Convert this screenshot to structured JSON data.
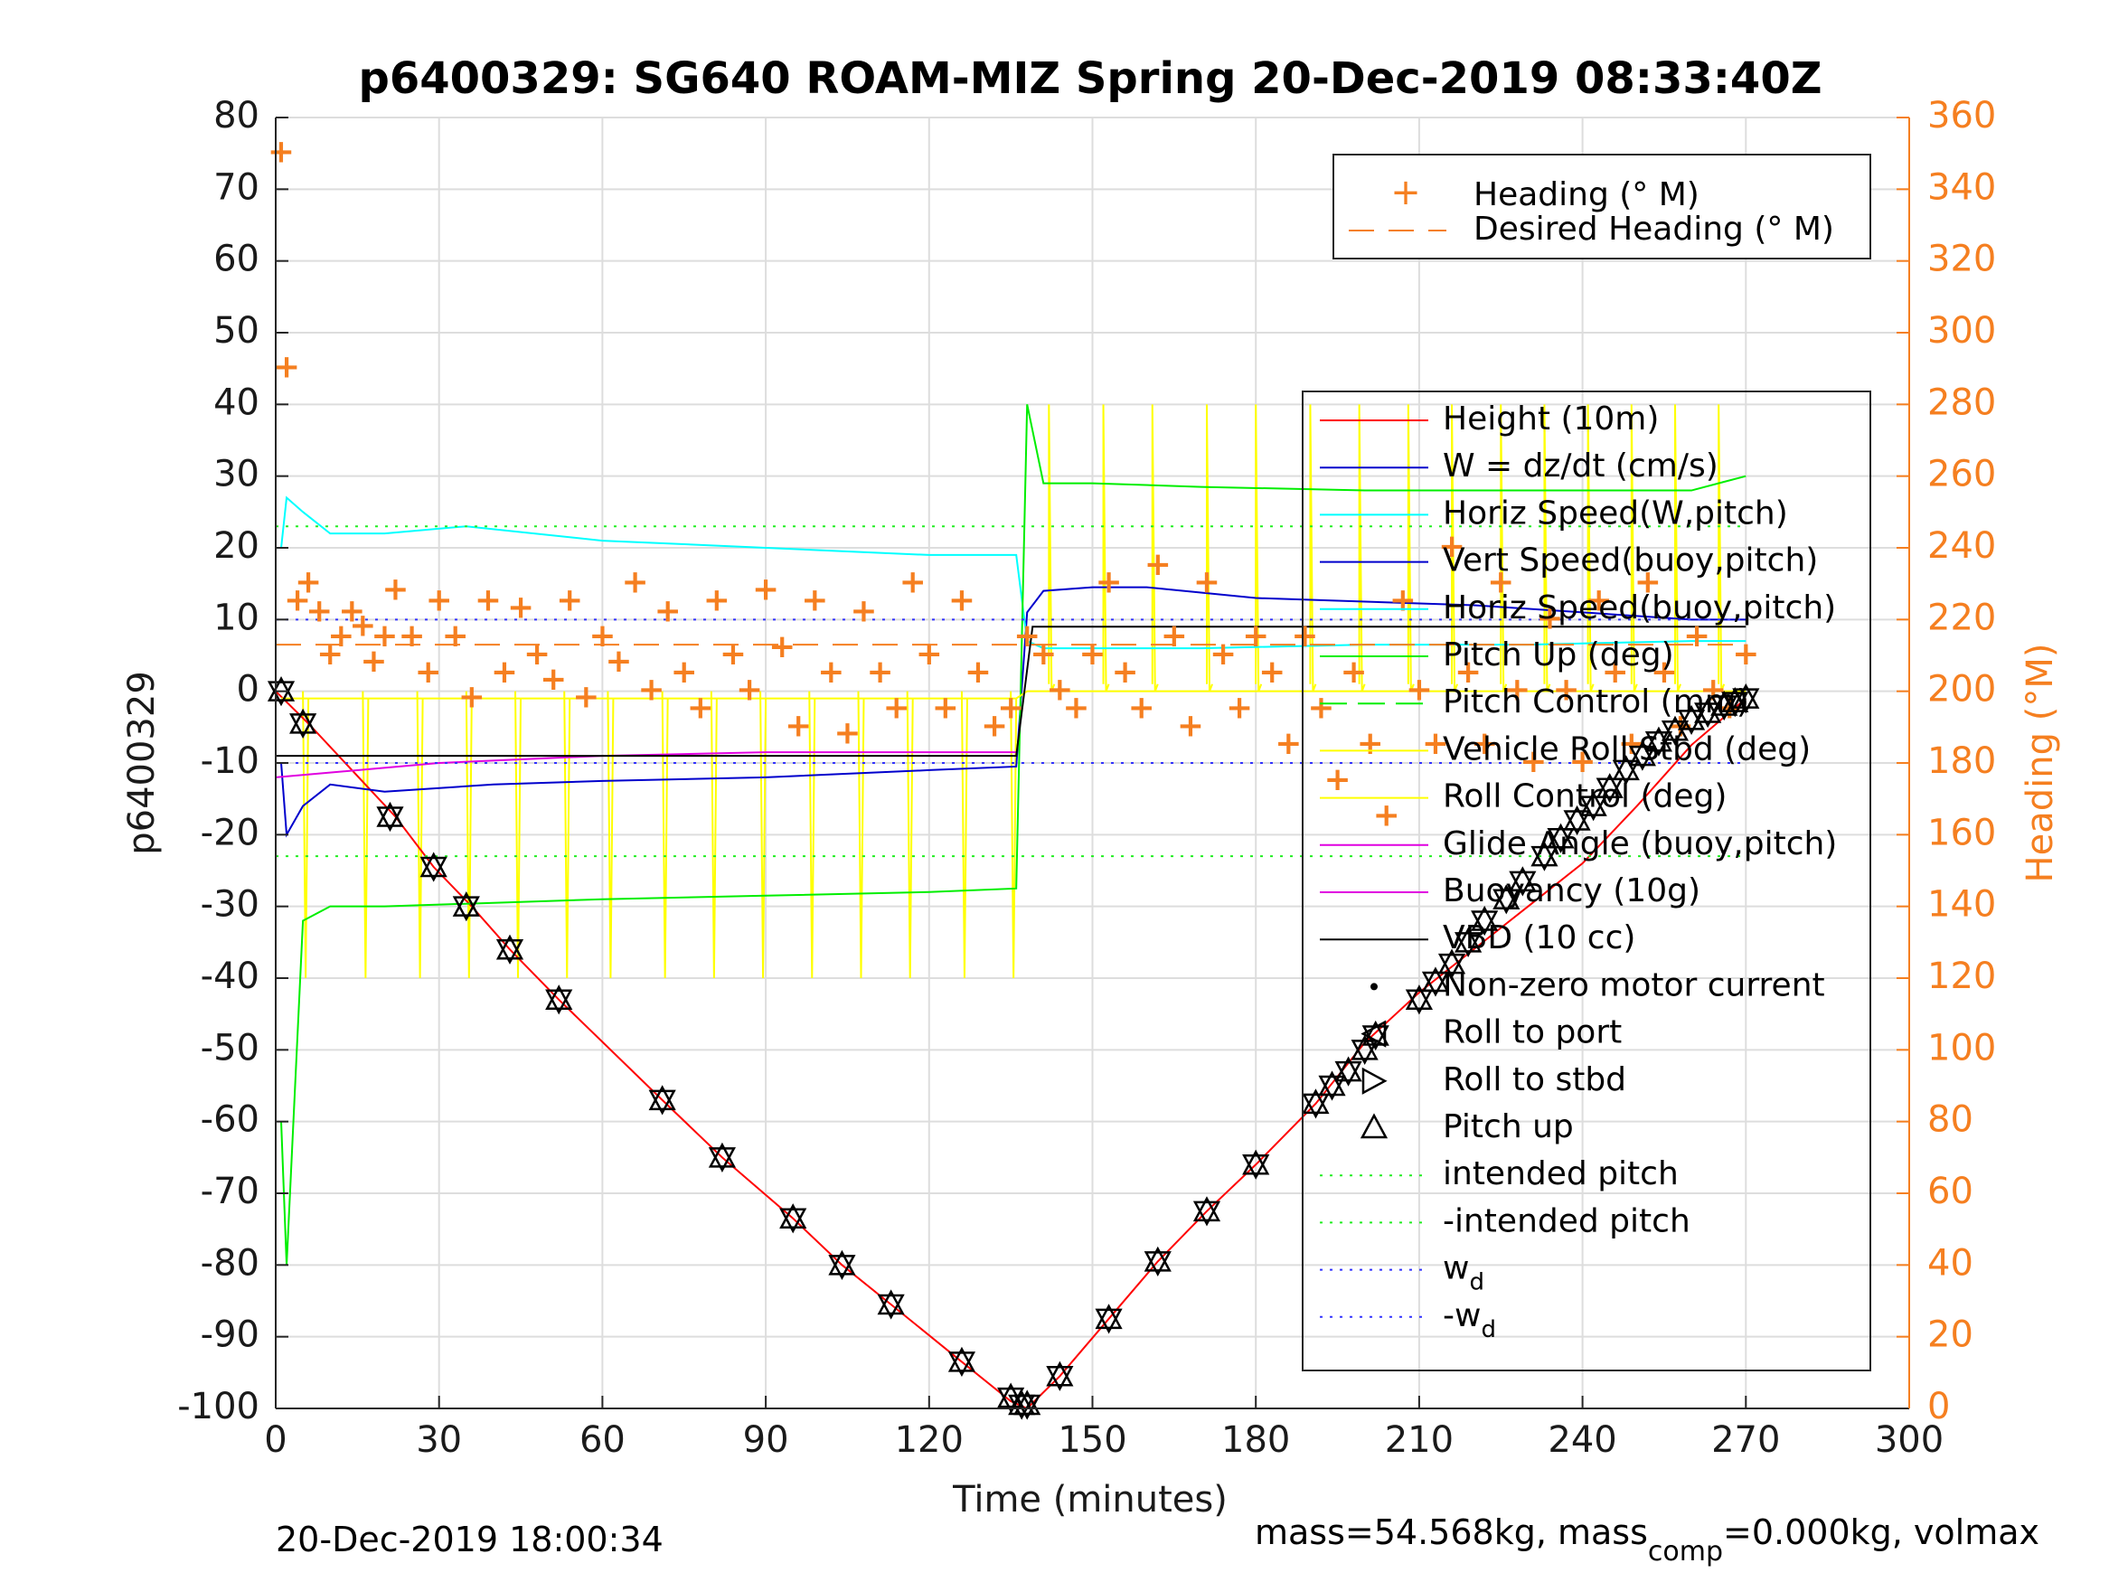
{
  "chart_data": {
    "type": "line",
    "title": "p6400329: SG640 ROAM-MIZ Spring 20-Dec-2019 08:33:40Z",
    "xlabel": "Time (minutes)",
    "ylabel": "p6400329",
    "y2label": "Heading (°M)",
    "xlim": [
      0,
      300
    ],
    "ylim": [
      -100,
      80
    ],
    "y2lim": [
      0,
      360
    ],
    "xticks": [
      "0",
      "30",
      "60",
      "90",
      "120",
      "150",
      "180",
      "210",
      "240",
      "270",
      "300"
    ],
    "yticks": [
      "80",
      "70",
      "60",
      "50",
      "40",
      "30",
      "20",
      "10",
      "0",
      "-10",
      "-20",
      "-30",
      "-40",
      "-50",
      "-60",
      "-70",
      "-80",
      "-90",
      "-100"
    ],
    "y2ticks": [
      "360",
      "340",
      "320",
      "300",
      "280",
      "260",
      "240",
      "220",
      "200",
      "180",
      "160",
      "140",
      "120",
      "100",
      "80",
      "60",
      "40",
      "20",
      "0"
    ],
    "grid": true,
    "colors": {
      "heading": "#f57f20",
      "height": "#ff0000",
      "w": "#0000cc",
      "horiz": "#00ffff",
      "pitch": "#00ee00",
      "roll": "#ffff00",
      "glide": "#e000e0",
      "vbd": "#000000",
      "wd": "#3333ff"
    },
    "legend_top": {
      "placement": "top-right",
      "entries": [
        "Heading (° M)",
        "Desired Heading (° M)"
      ]
    },
    "legend_main": {
      "placement": "right",
      "entries": [
        "Height (10m)",
        "W = dz/dt (cm/s)",
        "Horiz Speed(W,pitch)",
        "Vert Speed(buoy,pitch)",
        "Horiz Speed(buoy,pitch)",
        "Pitch Up (deg)",
        "Pitch Control (mm)",
        "Vehicle Roll Stbd (deg)",
        "Roll Control (deg)",
        "Glide Angle (buoy,pitch)",
        "Buoyancy (10g)",
        "VBD (10 cc)",
        "Non-zero motor current",
        "Roll to port",
        "Roll to stbd",
        "Pitch up",
        "intended pitch",
        "-intended pitch",
        "w",
        "-w"
      ],
      "subscript": "d"
    },
    "series": [
      {
        "name": "Height (10m)",
        "x": [
          0,
          6,
          22,
          29,
          36,
          43,
          52,
          71,
          82,
          95,
          104,
          113,
          126,
          135,
          138,
          144,
          153,
          162,
          171,
          180,
          191,
          200,
          210,
          220,
          230,
          240,
          250,
          260,
          270
        ],
        "y": [
          0,
          -4.5,
          -17.5,
          -24.5,
          -30,
          -36,
          -43,
          -57,
          -65,
          -73.5,
          -80,
          -85.5,
          -93.5,
          -99,
          -100,
          -95.5,
          -87.5,
          -79.5,
          -72.5,
          -66,
          -57.5,
          -49,
          -42,
          -36,
          -30,
          -24,
          -16,
          -7.5,
          -1
        ]
      },
      {
        "name": "W = dz/dt (cm/s)",
        "x": [
          1,
          2,
          5,
          10,
          20,
          40,
          60,
          90,
          120,
          136,
          138,
          141,
          150,
          160,
          180,
          200,
          220,
          240,
          260,
          270
        ],
        "y": [
          -10,
          -20,
          -16,
          -13,
          -14,
          -13,
          -12.5,
          -12,
          -11,
          -10.5,
          11,
          14,
          14.5,
          14.5,
          13,
          12.5,
          12,
          11,
          10,
          10
        ]
      },
      {
        "name": "Horiz Speed(W,pitch)",
        "x": [
          1,
          2,
          5,
          10,
          20,
          35,
          60,
          90,
          120,
          136,
          138,
          141,
          150,
          170,
          200,
          230,
          260,
          270
        ],
        "y": [
          20,
          27,
          25,
          22,
          22,
          23,
          21,
          20,
          19,
          19,
          7,
          6,
          6,
          6,
          6.5,
          6.5,
          7,
          7
        ]
      },
      {
        "name": "Pitch Up (deg)",
        "x": [
          1,
          2,
          5,
          10,
          20,
          40,
          60,
          90,
          120,
          136,
          138,
          141,
          150,
          170,
          200,
          230,
          260,
          270
        ],
        "y": [
          -60,
          -80,
          -32,
          -30,
          -30,
          -29.5,
          -29,
          -28.5,
          -28,
          -27.5,
          40,
          29,
          29,
          28.5,
          28,
          28,
          28,
          30
        ]
      },
      {
        "name": "Vehicle Roll Stbd (deg)",
        "x": [
          1,
          10,
          30,
          60,
          90,
          120,
          136,
          138,
          150,
          200,
          240,
          270
        ],
        "y": [
          -1,
          -1,
          -1,
          -1,
          -1,
          -1,
          -1,
          0,
          0,
          0,
          0,
          0
        ]
      },
      {
        "name": "Glide Angle (buoy,pitch)",
        "x": [
          0,
          30,
          60,
          90,
          120,
          136
        ],
        "y": [
          -12,
          -10,
          -9,
          -8.5,
          -8.5,
          -8.5
        ]
      },
      {
        "name": "VBD (10 cc)",
        "x": [
          0,
          5,
          30,
          60,
          90,
          120,
          136,
          139,
          150,
          200,
          270
        ],
        "y": [
          -9,
          -9,
          -9,
          -9,
          -9,
          -9,
          -9,
          9,
          9,
          9,
          9
        ]
      },
      {
        "name": "intended pitch",
        "x": [
          0,
          270
        ],
        "y": [
          23,
          23
        ]
      },
      {
        "name": "-intended pitch",
        "x": [
          0,
          270
        ],
        "y": [
          -23,
          -23
        ]
      },
      {
        "name": "w",
        "x": [
          0,
          270
        ],
        "y": [
          10,
          10
        ]
      },
      {
        "name": "-w",
        "x": [
          0,
          270
        ],
        "y": [
          -10,
          -10
        ]
      },
      {
        "name": "Heading (° M)",
        "axis": "right",
        "x": [
          1,
          2,
          4,
          6,
          8,
          10,
          12,
          14,
          16,
          18,
          20,
          22,
          25,
          28,
          30,
          33,
          36,
          39,
          42,
          45,
          48,
          51,
          54,
          57,
          60,
          63,
          66,
          69,
          72,
          75,
          78,
          81,
          84,
          87,
          90,
          93,
          96,
          99,
          102,
          105,
          108,
          111,
          114,
          117,
          120,
          123,
          126,
          129,
          132,
          135,
          138,
          141,
          144,
          147,
          150,
          153,
          156,
          159,
          162,
          165,
          168,
          171,
          174,
          177,
          180,
          183,
          186,
          189,
          192,
          195,
          198,
          201,
          204,
          207,
          210,
          213,
          216,
          219,
          222,
          225,
          228,
          231,
          234,
          237,
          240,
          243,
          246,
          249,
          252,
          255,
          258,
          261,
          264,
          267,
          270
        ],
        "y": [
          350,
          290,
          225,
          230,
          222,
          210,
          215,
          222,
          218,
          208,
          215,
          228,
          215,
          205,
          225,
          215,
          198,
          225,
          205,
          223,
          210,
          203,
          225,
          198,
          215,
          208,
          230,
          200,
          222,
          205,
          195,
          225,
          210,
          200,
          228,
          212,
          190,
          225,
          205,
          188,
          222,
          205,
          195,
          230,
          210,
          195,
          225,
          205,
          190,
          195,
          215,
          210,
          200,
          195,
          210,
          230,
          205,
          195,
          235,
          215,
          190,
          230,
          210,
          195,
          215,
          205,
          185,
          215,
          195,
          175,
          205,
          185,
          165,
          225,
          200,
          185,
          240,
          205,
          185,
          230,
          200,
          180,
          220,
          200,
          180,
          225,
          205,
          185,
          230,
          205,
          190,
          215,
          200,
          195,
          210
        ]
      },
      {
        "name": "Desired Heading (° M)",
        "axis": "right",
        "x": [
          0,
          270
        ],
        "y": [
          213,
          213
        ]
      }
    ],
    "markers": {
      "pitch_up_x": [
        1,
        5,
        21,
        29,
        35,
        43,
        52,
        71,
        82,
        95,
        104,
        113,
        126,
        135,
        137,
        138,
        144,
        153,
        162,
        171,
        180,
        191,
        194,
        197,
        200,
        202,
        210,
        213,
        216,
        219,
        222,
        226,
        229,
        233,
        236,
        239,
        242,
        245,
        248,
        251,
        254,
        257,
        260,
        263,
        266,
        268,
        270
      ],
      "pitch_up_y": [
        0,
        -4.5,
        -17.5,
        -24.5,
        -30,
        -36,
        -43,
        -57,
        -65,
        -73.5,
        -80,
        -85.5,
        -93.5,
        -98.5,
        -99.5,
        -99.5,
        -95.5,
        -87.5,
        -79.5,
        -72.5,
        -66,
        -57.5,
        -55,
        -53,
        -50,
        -48,
        -43,
        -40.5,
        -38,
        -35,
        -32,
        -29,
        -26.5,
        -23,
        -20.5,
        -18,
        -16,
        -13.5,
        -11,
        -9,
        -7,
        -5.5,
        -4,
        -3,
        -2,
        -1.5,
        -1
      ]
    }
  },
  "footer": {
    "timestamp": "20-Dec-2019 18:00:34",
    "mass_text_a": "mass=54.568kg, mass",
    "mass_sub": "comp",
    "mass_text_b": "=0.000kg, volmax"
  }
}
